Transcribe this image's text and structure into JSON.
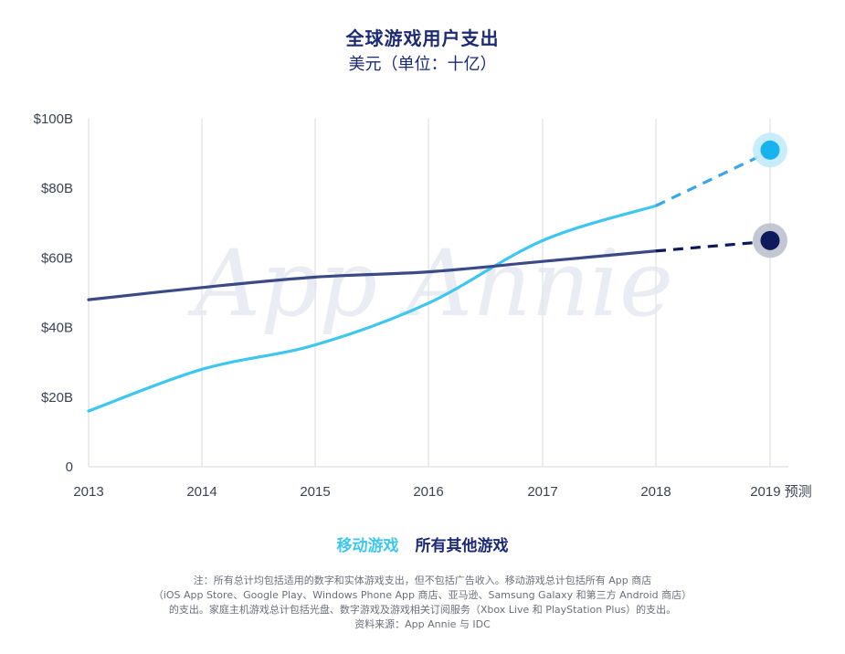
{
  "header": {
    "title": "全球游戏用户支出",
    "subtitle": "美元（单位：十亿）"
  },
  "watermark": "App Annie",
  "legend": {
    "mobile": "移动游戏",
    "other": "所有其他游戏"
  },
  "footnote": {
    "line1": "注：所有总计均包括适用的数字和实体游戏支出，但不包括广告收入。移动游戏总计包括所有 App 商店",
    "line2": "（iOS App Store、Google Play、Windows Phone App 商店、亚马逊、Samsung Galaxy 和第三方 Android 商店）",
    "line3": "的支出。家庭主机游戏总计包括光盘、数字游戏及游戏相关订阅服务（Xbox Live 和 PlayStation Plus）的支出。",
    "line4": "资料来源：App Annie 与 IDC"
  },
  "chart_data": {
    "type": "line",
    "categories": [
      "2013",
      "2014",
      "2015",
      "2016",
      "2017",
      "2018",
      "2019 预测"
    ],
    "y_tick_labels": [
      "0",
      "$20B",
      "$40B",
      "$60B",
      "$80B",
      "$100B"
    ],
    "y_ticks": [
      0,
      20,
      40,
      60,
      80,
      100
    ],
    "ylim": [
      0,
      100
    ],
    "grid": "vertical",
    "legend_position": "bottom",
    "series": [
      {
        "name": "移动游戏",
        "color": "#3ec7ee",
        "forecast_color": "#3aa6e8",
        "values": [
          16,
          28,
          35,
          47,
          65,
          75,
          91
        ],
        "forecast_from_index": 5
      },
      {
        "name": "所有其他游戏",
        "color": "#3b4a86",
        "forecast_color": "#0d1a5c",
        "values": [
          48,
          51.5,
          54.5,
          56,
          59,
          62,
          65
        ],
        "forecast_from_index": 5
      }
    ]
  }
}
